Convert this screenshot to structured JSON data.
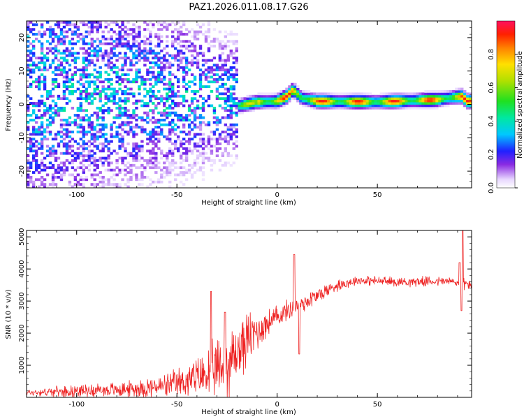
{
  "title": "PAZ1.2026.011.08.17.G26",
  "chart_data": [
    {
      "type": "heatmap",
      "name": "spectrogram",
      "xlabel": "Height of straight line (km)",
      "ylabel": "Frequency (Hz)",
      "xlim": [
        -125,
        97
      ],
      "ylim": [
        -25,
        25
      ],
      "xticks": [
        -100,
        -50,
        0,
        50
      ],
      "yticks": [
        -20,
        -10,
        0,
        10,
        20
      ],
      "colorbar": {
        "label": "Normalized spectral amplitude",
        "range": [
          0,
          1
        ],
        "ticks": [
          "0.0",
          "0.2",
          "0.4",
          "0.6",
          "0.8"
        ]
      },
      "ridge": {
        "description_points": [
          {
            "x": -20,
            "f": -0.5
          },
          {
            "x": -10,
            "f": 0.8
          },
          {
            "x": 0,
            "f": 1.0
          },
          {
            "x": 5,
            "f": 2.5
          },
          {
            "x": 8,
            "f": 4.5
          },
          {
            "x": 12,
            "f": 2.0
          },
          {
            "x": 20,
            "f": 1.0
          },
          {
            "x": 50,
            "f": 0.8
          },
          {
            "x": 80,
            "f": 1.5
          },
          {
            "x": 92,
            "f": 2.5
          },
          {
            "x": 95,
            "f": 1.0
          }
        ],
        "peak_amplitude": 0.95
      },
      "noise_region": {
        "x_from": -125,
        "x_to": -20,
        "f_center": 3,
        "f_spread": 9,
        "amplitude": 0.25
      }
    },
    {
      "type": "line",
      "name": "snr",
      "xlabel": "Height of straight line (km)",
      "ylabel": "SNR (10 * v/v)",
      "xlim": [
        -125,
        97
      ],
      "ylim": [
        0,
        5200
      ],
      "xticks": [
        -100,
        -50,
        0,
        50
      ],
      "yticks": [
        1000,
        2000,
        3000,
        4000,
        5000
      ],
      "color": "#ee2222",
      "envelope": [
        {
          "x": -125,
          "y": 150,
          "noise": 80
        },
        {
          "x": -100,
          "y": 200,
          "noise": 150
        },
        {
          "x": -75,
          "y": 250,
          "noise": 200
        },
        {
          "x": -55,
          "y": 350,
          "noise": 300
        },
        {
          "x": -40,
          "y": 600,
          "noise": 500
        },
        {
          "x": -25,
          "y": 1000,
          "noise": 900
        },
        {
          "x": -15,
          "y": 1800,
          "noise": 700
        },
        {
          "x": -5,
          "y": 2300,
          "noise": 350
        },
        {
          "x": 5,
          "y": 2700,
          "noise": 250
        },
        {
          "x": 15,
          "y": 3000,
          "noise": 250
        },
        {
          "x": 30,
          "y": 3500,
          "noise": 150
        },
        {
          "x": 40,
          "y": 3650,
          "noise": 120
        },
        {
          "x": 60,
          "y": 3600,
          "noise": 120
        },
        {
          "x": 85,
          "y": 3620,
          "noise": 120
        },
        {
          "x": 97,
          "y": 3500,
          "noise": 150
        }
      ],
      "spikes": [
        {
          "x": -33,
          "y": 3300
        },
        {
          "x": -26,
          "y": 2650
        },
        {
          "x": 8.5,
          "y": 4450
        },
        {
          "x": 11,
          "y": 1350
        },
        {
          "x": 91,
          "y": 4200
        },
        {
          "x": 92.5,
          "y": 5200
        },
        {
          "x": 92,
          "y": 2700
        }
      ]
    }
  ]
}
